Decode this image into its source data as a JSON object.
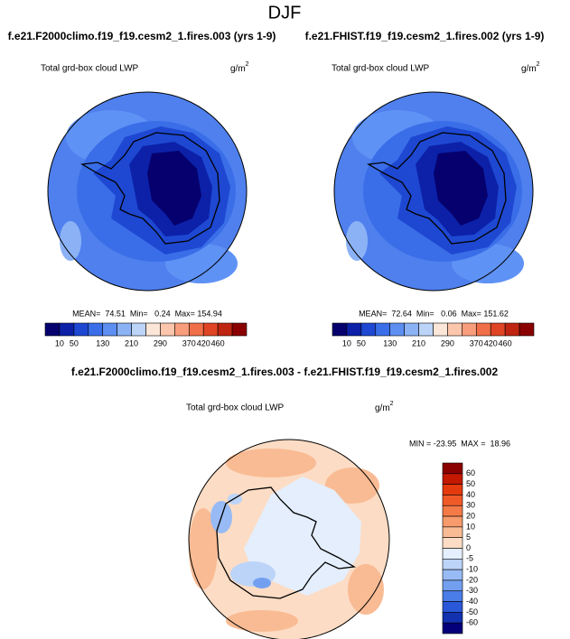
{
  "title": "DJF",
  "panels": [
    {
      "title": "f.e21.F2000climo.f19_f19.cesm2_1.fires.003 (yrs 1-9)",
      "variable": "Total grd-box cloud LWP",
      "units": "g/m",
      "units_power": "2",
      "stats": "MEAN=  74.51  Min=   0.24  Max= 154.94"
    },
    {
      "title": "f.e21.FHIST.f19_f19.cesm2_1.fires.002 (yrs 1-9)",
      "variable": "Total grd-box cloud LWP",
      "units": "g/m",
      "units_power": "2",
      "stats": "MEAN=  72.64  Min=   0.06  Max= 151.62"
    }
  ],
  "colorbar": {
    "labels": [
      "10",
      "50",
      "130",
      "210",
      "290",
      "370",
      "420",
      "460"
    ],
    "colors": [
      "#05006e",
      "#0c21a8",
      "#1e48d2",
      "#3a6ee8",
      "#5d8ff2",
      "#8cb2f6",
      "#bcd4f8",
      "#fbe6d8",
      "#fcc6ac",
      "#f89e7c",
      "#f06f48",
      "#df4524",
      "#bf2510",
      "#8a0000"
    ]
  },
  "difference": {
    "title": "f.e21.F2000climo.f19_f19.cesm2_1.fires.003 - f.e21.FHIST.f19_f19.cesm2_1.fires.002",
    "variable": "Total grd-box cloud LWP",
    "units": "g/m",
    "units_power": "2",
    "stats": "MIN = -23.95  MAX =  18.96",
    "colorbar": {
      "labels": [
        "60",
        "50",
        "40",
        "30",
        "20",
        "10",
        "5",
        "0",
        "-5",
        "-10",
        "-20",
        "-30",
        "-40",
        "-50",
        "-60"
      ],
      "colors": [
        "#8b0000",
        "#c41800",
        "#e43a0e",
        "#f05a28",
        "#f47a48",
        "#f79a6c",
        "#f9bb94",
        "#fcdcc4",
        "#e4eefc",
        "#bcd4f8",
        "#98bbf5",
        "#729ff0",
        "#4a7de8",
        "#2a58d8",
        "#1232b0",
        "#04007a"
      ]
    }
  }
}
